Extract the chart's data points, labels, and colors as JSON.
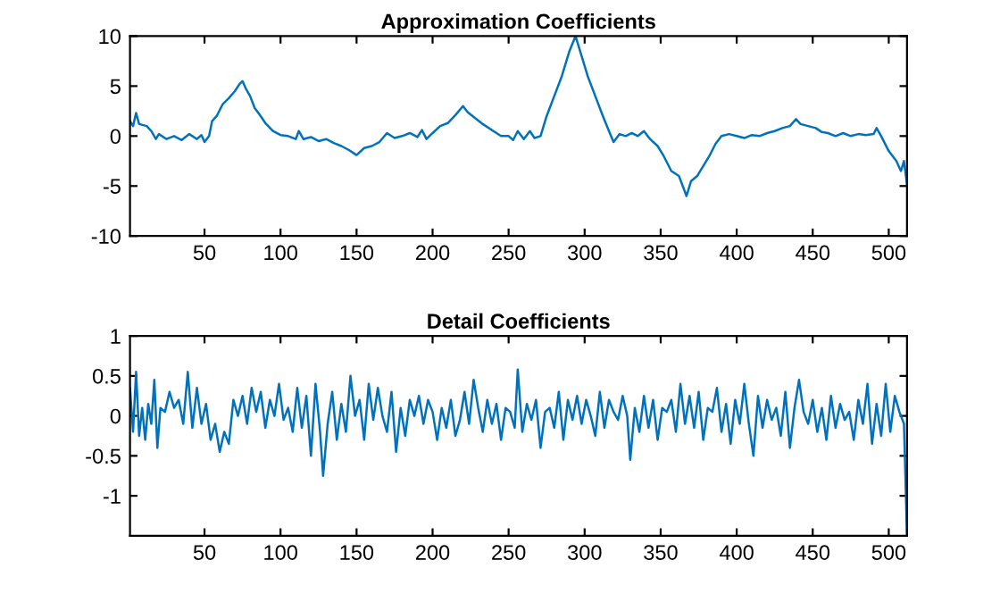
{
  "chart_data": [
    {
      "type": "line",
      "title": "Approximation Coefficients",
      "xlim": [
        1,
        512
      ],
      "xticks": [
        50,
        100,
        150,
        200,
        250,
        300,
        350,
        400,
        450,
        500
      ],
      "ylim": [
        -10,
        10
      ],
      "yticks": [
        -10,
        -5,
        0,
        5,
        10
      ],
      "grid": false,
      "series": [
        {
          "color": "#0072bd",
          "x": [
            1,
            3,
            5,
            7,
            12,
            15,
            18,
            20,
            25,
            30,
            35,
            40,
            45,
            48,
            50,
            53,
            55,
            58,
            62,
            66,
            70,
            73,
            75,
            77,
            80,
            83,
            86,
            90,
            95,
            100,
            105,
            110,
            112,
            115,
            120,
            125,
            130,
            135,
            140,
            145,
            150,
            155,
            160,
            165,
            170,
            175,
            180,
            185,
            190,
            193,
            196,
            200,
            205,
            210,
            215,
            220,
            223,
            228,
            233,
            240,
            245,
            250,
            253,
            256,
            260,
            264,
            267,
            271,
            275,
            280,
            285,
            290,
            294,
            297,
            302,
            307,
            312,
            316,
            319,
            323,
            327,
            331,
            335,
            339,
            343,
            348,
            352,
            357,
            362,
            367,
            370,
            374,
            378,
            382,
            386,
            390,
            395,
            400,
            405,
            410,
            415,
            420,
            425,
            430,
            435,
            439,
            442,
            447,
            452,
            456,
            460,
            465,
            470,
            475,
            480,
            485,
            490,
            492,
            495,
            500,
            505,
            508,
            510,
            512
          ],
          "values": [
            1.5,
            1.0,
            2.3,
            1.2,
            1.0,
            0.5,
            -0.3,
            0.2,
            -0.3,
            0,
            -0.4,
            0.2,
            -0.3,
            0.1,
            -0.6,
            0,
            1.5,
            2,
            3.2,
            3.8,
            4.5,
            5.2,
            5.5,
            4.8,
            4,
            2.8,
            2.2,
            1.3,
            0.5,
            0.1,
            0,
            -0.3,
            0.5,
            -0.3,
            -0.1,
            -0.5,
            -0.3,
            -0.7,
            -1.0,
            -1.4,
            -1.9,
            -1.2,
            -1.0,
            -0.6,
            0.3,
            -0.2,
            0,
            0.3,
            -0.1,
            0.6,
            -0.3,
            0.3,
            1.0,
            1.3,
            2.1,
            3.0,
            2.4,
            1.8,
            1.2,
            0.5,
            0,
            0,
            -0.4,
            0.5,
            -0.3,
            0.5,
            -0.2,
            0,
            2,
            4,
            6,
            8.5,
            10,
            8.5,
            6,
            4,
            2,
            0.5,
            -0.6,
            0.2,
            0,
            0.3,
            0,
            0.5,
            -0.3,
            -1,
            -2,
            -3.5,
            -4,
            -6,
            -4.5,
            -4,
            -3,
            -2,
            -0.8,
            0,
            0.2,
            0,
            -0.2,
            0.1,
            0,
            0.3,
            0.5,
            0.8,
            1.0,
            1.7,
            1.2,
            1.0,
            0.8,
            0.4,
            0.3,
            0,
            0.3,
            0,
            0.2,
            0.1,
            0.2,
            0.8,
            0,
            -1.5,
            -2.5,
            -3.5,
            -2.5,
            -4.8
          ]
        }
      ]
    },
    {
      "type": "line",
      "title": "Detail Coefficients",
      "xlim": [
        1,
        512
      ],
      "xticks": [
        50,
        100,
        150,
        200,
        250,
        300,
        350,
        400,
        450,
        500
      ],
      "ylim": [
        -1.5,
        1
      ],
      "yticks": [
        -1,
        -0.5,
        0,
        0.5,
        1
      ],
      "grid": false,
      "series": [
        {
          "color": "#0072bd",
          "x": [
            1,
            3,
            5,
            7,
            9,
            11,
            13,
            15,
            17,
            19,
            21,
            24,
            27,
            30,
            33,
            36,
            39,
            42,
            45,
            48,
            51,
            54,
            57,
            60,
            63,
            66,
            69,
            72,
            75,
            78,
            81,
            84,
            87,
            90,
            93,
            96,
            99,
            102,
            105,
            108,
            111,
            114,
            117,
            120,
            123,
            126,
            128,
            131,
            134,
            137,
            140,
            143,
            146,
            149,
            152,
            155,
            158,
            161,
            164,
            167,
            170,
            173,
            176,
            179,
            182,
            185,
            188,
            191,
            194,
            197,
            200,
            203,
            206,
            209,
            212,
            215,
            218,
            221,
            224,
            227,
            230,
            233,
            236,
            239,
            242,
            245,
            248,
            251,
            254,
            256,
            259,
            262,
            265,
            268,
            271,
            274,
            277,
            280,
            283,
            286,
            289,
            292,
            295,
            298,
            301,
            304,
            307,
            310,
            313,
            316,
            319,
            322,
            325,
            328,
            330,
            333,
            336,
            339,
            342,
            345,
            348,
            351,
            354,
            357,
            360,
            363,
            366,
            369,
            372,
            375,
            378,
            381,
            384,
            387,
            390,
            393,
            396,
            399,
            402,
            405,
            408,
            411,
            414,
            417,
            420,
            423,
            426,
            429,
            432,
            435,
            438,
            441,
            444,
            447,
            450,
            453,
            456,
            459,
            462,
            465,
            468,
            471,
            474,
            477,
            480,
            483,
            486,
            489,
            492,
            495,
            498,
            501,
            504,
            507,
            510,
            512
          ],
          "values": [
            0.35,
            -0.2,
            0.55,
            -0.25,
            0.1,
            -0.3,
            0.15,
            -0.1,
            0.45,
            -0.4,
            0.1,
            0.05,
            0.3,
            0.1,
            0.2,
            -0.1,
            0.55,
            -0.15,
            0.35,
            -0.1,
            0.15,
            -0.3,
            -0.1,
            -0.45,
            -0.2,
            -0.35,
            0.2,
            0,
            0.25,
            -0.1,
            0.35,
            0.05,
            0.3,
            -0.15,
            0.2,
            0,
            0.4,
            -0.05,
            0.1,
            -0.2,
            0.35,
            -0.15,
            0.25,
            -0.5,
            0.4,
            -0.2,
            -0.75,
            -0.1,
            0.3,
            -0.3,
            0.15,
            -0.2,
            0.5,
            0,
            0.2,
            -0.3,
            0.4,
            -0.05,
            0.35,
            0,
            -0.2,
            0.3,
            -0.45,
            0.1,
            -0.25,
            0.2,
            0,
            0.25,
            -0.1,
            0.2,
            0.05,
            -0.3,
            0.1,
            -0.15,
            0.2,
            -0.25,
            -0.05,
            0.3,
            -0.1,
            0.45,
            0.1,
            -0.2,
            0.2,
            -0.1,
            0.15,
            -0.3,
            0.1,
            0.05,
            -0.15,
            0.58,
            -0.2,
            0.15,
            -0.05,
            0.2,
            -0.4,
            0.05,
            0.1,
            -0.15,
            0.3,
            -0.3,
            0.2,
            -0.05,
            0.25,
            -0.1,
            0.2,
            0,
            -0.25,
            0.3,
            -0.15,
            0.2,
            0.05,
            -0.05,
            0.25,
            0,
            -0.55,
            0.1,
            -0.2,
            0.25,
            -0.15,
            0.2,
            -0.3,
            0.1,
            0.05,
            0.2,
            -0.2,
            0.4,
            -0.1,
            0.25,
            -0.15,
            0.3,
            -0.3,
            0.1,
            0.05,
            0.35,
            -0.2,
            0.15,
            -0.35,
            0.2,
            -0.1,
            0.4,
            -0.1,
            -0.5,
            0.25,
            -0.15,
            0.2,
            -0.05,
            0.1,
            -0.25,
            0.3,
            -0.4,
            0.1,
            0.45,
            0.05,
            -0.1,
            0.2,
            -0.2,
            0.1,
            -0.3,
            0.25,
            -0.15,
            0.15,
            -0.05,
            0.05,
            -0.3,
            0.2,
            -0.1,
            0.4,
            -0.35,
            0.15,
            -0.25,
            0.4,
            -0.2,
            0.25,
            0.05,
            -0.1,
            -1.5
          ]
        }
      ]
    }
  ]
}
